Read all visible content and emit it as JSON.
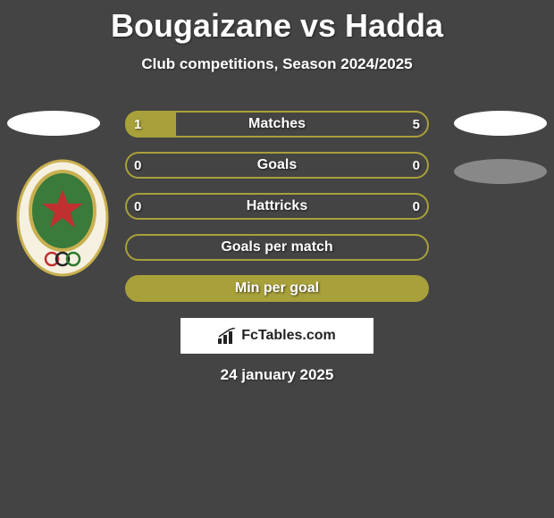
{
  "title": "Bougaizane vs Hadda",
  "subtitle": "Club competitions, Season 2024/2025",
  "site_label": "FcTables.com",
  "date": "24 january 2025",
  "colors": {
    "background": "#444444",
    "bar_border": "#a8a03a",
    "bar_fill": "#a8a03a",
    "bar_empty": "transparent",
    "text": "#ffffff",
    "crest_green": "#3a7a3a",
    "crest_gold": "#c8b050",
    "crest_red": "#c03030"
  },
  "bars": [
    {
      "label": "Matches",
      "left": "1",
      "right": "5",
      "fill_pct": 16.7,
      "show_vals": true
    },
    {
      "label": "Goals",
      "left": "0",
      "right": "0",
      "fill_pct": 0,
      "show_vals": true
    },
    {
      "label": "Hattricks",
      "left": "0",
      "right": "0",
      "fill_pct": 0,
      "show_vals": true
    },
    {
      "label": "Goals per match",
      "left": "",
      "right": "",
      "fill_pct": 0,
      "show_vals": false
    },
    {
      "label": "Min per goal",
      "left": "",
      "right": "",
      "fill_pct": 100,
      "show_vals": false
    }
  ]
}
